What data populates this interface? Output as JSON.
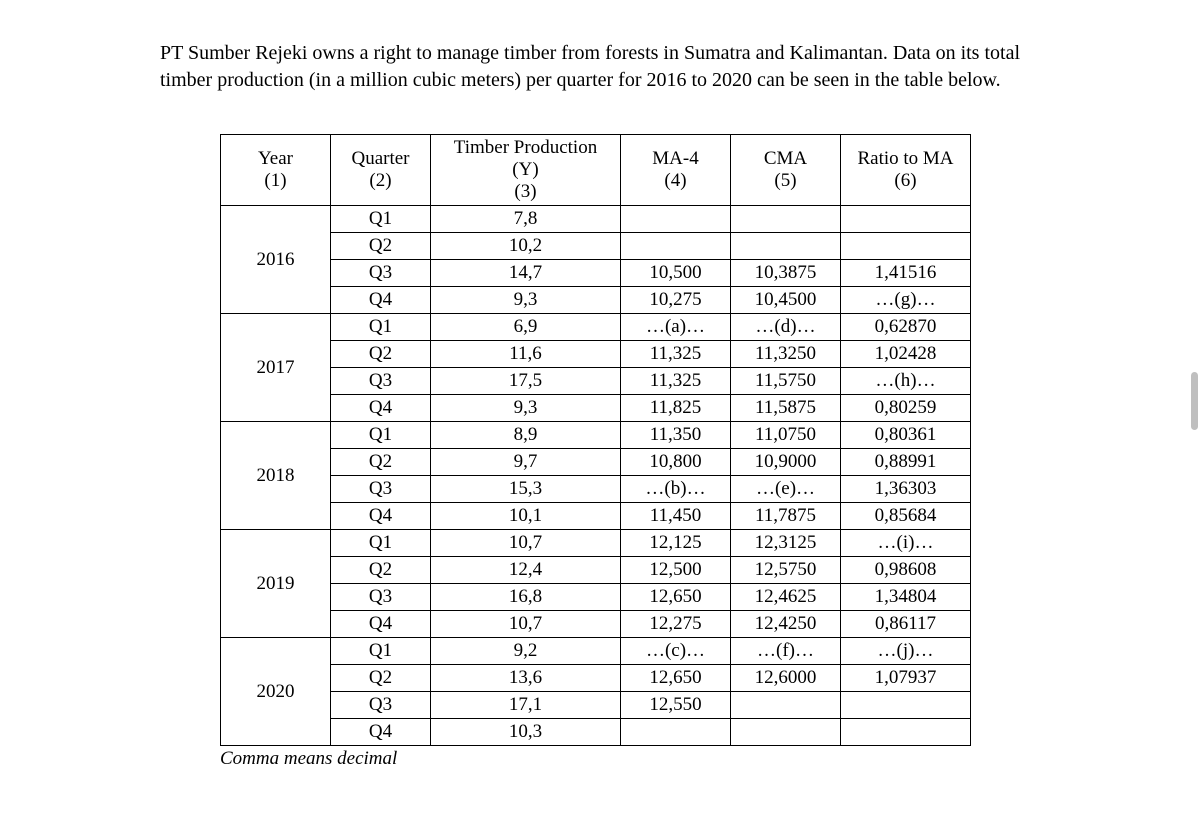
{
  "intro": "PT Sumber Rejeki owns a right to manage timber from forests in Sumatra and Kalimantan. Data on its total timber production (in a million cubic meters) per quarter for 2016 to 2020 can be seen in the table below.",
  "headers": {
    "year_t": "Year",
    "year_s": "(1)",
    "quarter_t": "Quarter",
    "quarter_s": "(2)",
    "y_t": "Timber Production",
    "y_m": "(Y)",
    "y_s": "(3)",
    "ma4_t": "MA-4",
    "ma4_s": "(4)",
    "cma_t": "CMA",
    "cma_s": "(5)",
    "ratio_t": "Ratio to MA",
    "ratio_s": "(6)"
  },
  "note": "Comma means decimal",
  "years": [
    {
      "year": "2016",
      "rows": [
        {
          "q": "Q1",
          "y": "7,8",
          "ma4": "",
          "cma": "",
          "ratio": ""
        },
        {
          "q": "Q2",
          "y": "10,2",
          "ma4": "",
          "cma": "",
          "ratio": ""
        },
        {
          "q": "Q3",
          "y": "14,7",
          "ma4": "10,500",
          "cma": "10,3875",
          "ratio": "1,41516"
        },
        {
          "q": "Q4",
          "y": "9,3",
          "ma4": "10,275",
          "cma": "10,4500",
          "ratio": "…(g)…"
        }
      ]
    },
    {
      "year": "2017",
      "rows": [
        {
          "q": "Q1",
          "y": "6,9",
          "ma4": "…(a)…",
          "cma": "…(d)…",
          "ratio": "0,62870"
        },
        {
          "q": "Q2",
          "y": "11,6",
          "ma4": "11,325",
          "cma": "11,3250",
          "ratio": "1,02428"
        },
        {
          "q": "Q3",
          "y": "17,5",
          "ma4": "11,325",
          "cma": "11,5750",
          "ratio": "…(h)…"
        },
        {
          "q": "Q4",
          "y": "9,3",
          "ma4": "11,825",
          "cma": "11,5875",
          "ratio": "0,80259"
        }
      ]
    },
    {
      "year": "2018",
      "rows": [
        {
          "q": "Q1",
          "y": "8,9",
          "ma4": "11,350",
          "cma": "11,0750",
          "ratio": "0,80361"
        },
        {
          "q": "Q2",
          "y": "9,7",
          "ma4": "10,800",
          "cma": "10,9000",
          "ratio": "0,88991"
        },
        {
          "q": "Q3",
          "y": "15,3",
          "ma4": "…(b)…",
          "cma": "…(e)…",
          "ratio": "1,36303"
        },
        {
          "q": "Q4",
          "y": "10,1",
          "ma4": "11,450",
          "cma": "11,7875",
          "ratio": "0,85684"
        }
      ]
    },
    {
      "year": "2019",
      "rows": [
        {
          "q": "Q1",
          "y": "10,7",
          "ma4": "12,125",
          "cma": "12,3125",
          "ratio": "…(i)…"
        },
        {
          "q": "Q2",
          "y": "12,4",
          "ma4": "12,500",
          "cma": "12,5750",
          "ratio": "0,98608"
        },
        {
          "q": "Q3",
          "y": "16,8",
          "ma4": "12,650",
          "cma": "12,4625",
          "ratio": "1,34804"
        },
        {
          "q": "Q4",
          "y": "10,7",
          "ma4": "12,275",
          "cma": "12,4250",
          "ratio": "0,86117"
        }
      ]
    },
    {
      "year": "2020",
      "rows": [
        {
          "q": "Q1",
          "y": "9,2",
          "ma4": "…(c)…",
          "cma": "…(f)…",
          "ratio": "…(j)…"
        },
        {
          "q": "Q2",
          "y": "13,6",
          "ma4": "12,650",
          "cma": "12,6000",
          "ratio": "1,07937"
        },
        {
          "q": "Q3",
          "y": "17,1",
          "ma4": "12,550",
          "cma": "",
          "ratio": ""
        },
        {
          "q": "Q4",
          "y": "10,3",
          "ma4": "",
          "cma": "",
          "ratio": ""
        }
      ]
    }
  ]
}
